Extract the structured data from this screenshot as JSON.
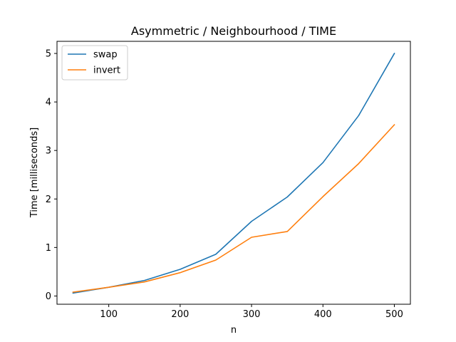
{
  "chart_data": {
    "type": "line",
    "title": "Asymmetric / Neighbourhood / TIME",
    "xlabel": "n",
    "ylabel": "Time [milliseconds]",
    "x": [
      50,
      100,
      150,
      200,
      250,
      300,
      350,
      400,
      450,
      500
    ],
    "xlim": [
      27.5,
      522.5
    ],
    "ylim": [
      -0.17,
      5.25
    ],
    "xticks": [
      100,
      200,
      300,
      400,
      500
    ],
    "yticks": [
      0,
      1,
      2,
      3,
      4,
      5
    ],
    "grid": false,
    "legend_position": "top-left",
    "series": [
      {
        "name": "swap",
        "color": "#1f77b4",
        "values": [
          0.06,
          0.18,
          0.32,
          0.55,
          0.86,
          1.54,
          2.04,
          2.75,
          3.72,
          5.0
        ]
      },
      {
        "name": "invert",
        "color": "#ff7f0e",
        "values": [
          0.08,
          0.18,
          0.29,
          0.48,
          0.74,
          1.21,
          1.33,
          2.05,
          2.73,
          3.53
        ]
      }
    ]
  }
}
